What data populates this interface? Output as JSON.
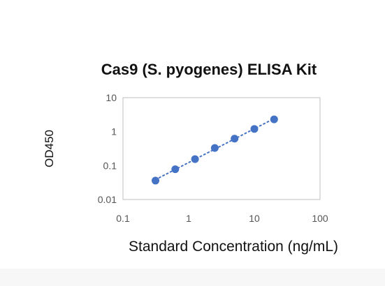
{
  "chart_data": {
    "type": "scatter",
    "title": "Cas9 (S. pyogenes) ELISA Kit",
    "xlabel": "Standard Concentration (ng/mL)",
    "ylabel": "OD450",
    "x_scale": "log",
    "y_scale": "log",
    "xlim": [
      0.1,
      100
    ],
    "ylim": [
      0.01,
      10
    ],
    "x_ticks": [
      "0.1",
      "1",
      "10",
      "100"
    ],
    "y_ticks": [
      "0.01",
      "0.1",
      "1",
      "10"
    ],
    "grid": false,
    "trendline": "dotted",
    "colors": {
      "marker": "#4472c4",
      "trendline": "#4472c4",
      "axis": "#bfbfbf"
    },
    "series": [
      {
        "x": [
          0.3125,
          0.625,
          1.25,
          2.5,
          5,
          10,
          20
        ],
        "y": [
          0.036,
          0.078,
          0.155,
          0.33,
          0.62,
          1.2,
          2.3
        ]
      }
    ]
  }
}
